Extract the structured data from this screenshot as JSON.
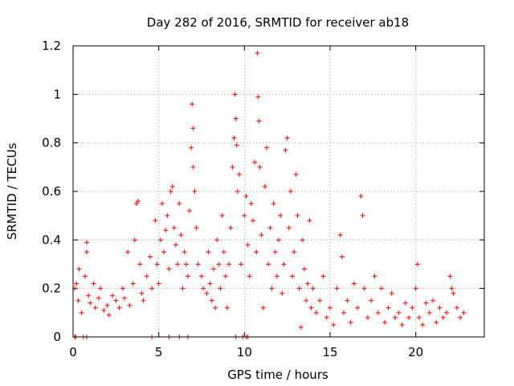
{
  "chart_data": {
    "type": "scatter",
    "title": "Day 282 of 2016, SRMTID for receiver ab18",
    "xlabel": "GPS time / hours",
    "ylabel": "SRMTID / TECUs",
    "xlim": [
      0,
      24
    ],
    "ylim": [
      0,
      1.2
    ],
    "xticks": [
      0,
      5,
      10,
      15,
      20
    ],
    "xtick_labels": [
      "0",
      "5",
      "10",
      "15",
      "20"
    ],
    "yticks": [
      0,
      0.2,
      0.4,
      0.6,
      0.8,
      1.0,
      1.2
    ],
    "ytick_labels": [
      "0",
      "0.2",
      "0.4",
      "0.6",
      "0.8",
      "1",
      "1.2"
    ],
    "grid": true,
    "marker": "+",
    "series": [
      {
        "name": "SRMTID",
        "color": "#ff0000",
        "points": [
          [
            0.1,
            0.2
          ],
          [
            0.2,
            0.22
          ],
          [
            0.3,
            0.15
          ],
          [
            0.35,
            0.28
          ],
          [
            0.5,
            0.1
          ],
          [
            0.7,
            0.25
          ],
          [
            0.8,
            0.39
          ],
          [
            0.8,
            0.35
          ],
          [
            0.9,
            0.17
          ],
          [
            1.0,
            0.14
          ],
          [
            1.2,
            0.22
          ],
          [
            1.3,
            0.12
          ],
          [
            1.5,
            0.16
          ],
          [
            1.6,
            0.2
          ],
          [
            1.8,
            0.11
          ],
          [
            2.0,
            0.13
          ],
          [
            2.1,
            0.09
          ],
          [
            2.3,
            0.17
          ],
          [
            2.5,
            0.15
          ],
          [
            2.7,
            0.12
          ],
          [
            2.9,
            0.2
          ],
          [
            3.0,
            0.16
          ],
          [
            3.2,
            0.35
          ],
          [
            3.3,
            0.13
          ],
          [
            3.5,
            0.22
          ],
          [
            3.6,
            0.4
          ],
          [
            3.7,
            0.55
          ],
          [
            3.8,
            0.56
          ],
          [
            3.9,
            0.3
          ],
          [
            4.0,
            0.18
          ],
          [
            4.1,
            0.15
          ],
          [
            4.3,
            0.25
          ],
          [
            4.5,
            0.33
          ],
          [
            4.6,
            0.2
          ],
          [
            4.8,
            0.48
          ],
          [
            4.9,
            0.3
          ],
          [
            5.0,
            0.22
          ],
          [
            5.1,
            0.4
          ],
          [
            5.2,
            0.55
          ],
          [
            5.3,
            0.35
          ],
          [
            5.4,
            0.44
          ],
          [
            5.5,
            0.5
          ],
          [
            5.6,
            0.28
          ],
          [
            5.7,
            0.6
          ],
          [
            5.8,
            0.62
          ],
          [
            5.9,
            0.45
          ],
          [
            6.0,
            0.38
          ],
          [
            6.1,
            0.3
          ],
          [
            6.2,
            0.55
          ],
          [
            6.3,
            0.42
          ],
          [
            6.4,
            0.2
          ],
          [
            6.5,
            0.35
          ],
          [
            6.6,
            0.3
          ],
          [
            6.7,
            0.25
          ],
          [
            6.8,
            0.52
          ],
          [
            6.9,
            0.78
          ],
          [
            6.95,
            0.96
          ],
          [
            7.0,
            0.86
          ],
          [
            7.0,
            0.7
          ],
          [
            7.1,
            0.6
          ],
          [
            7.2,
            0.45
          ],
          [
            7.3,
            0.3
          ],
          [
            7.5,
            0.25
          ],
          [
            7.6,
            0.2
          ],
          [
            7.8,
            0.18
          ],
          [
            7.9,
            0.35
          ],
          [
            8.0,
            0.22
          ],
          [
            8.1,
            0.15
          ],
          [
            8.2,
            0.28
          ],
          [
            8.3,
            0.12
          ],
          [
            8.4,
            0.4
          ],
          [
            8.5,
            0.3
          ],
          [
            8.6,
            0.2
          ],
          [
            8.7,
            0.5
          ],
          [
            8.8,
            0.35
          ],
          [
            8.9,
            0.25
          ],
          [
            9.0,
            0.12
          ],
          [
            9.1,
            0.3
          ],
          [
            9.2,
            0.45
          ],
          [
            9.3,
            0.7
          ],
          [
            9.4,
            0.82
          ],
          [
            9.45,
            1.0
          ],
          [
            9.5,
            0.9
          ],
          [
            9.55,
            0.79
          ],
          [
            9.6,
            0.6
          ],
          [
            9.7,
            0.67
          ],
          [
            9.8,
            0.3
          ],
          [
            10.0,
            0.5
          ],
          [
            10.1,
            0.58
          ],
          [
            10.2,
            0.38
          ],
          [
            10.3,
            0.25
          ],
          [
            10.4,
            0.55
          ],
          [
            10.5,
            0.48
          ],
          [
            10.6,
            0.72
          ],
          [
            10.7,
            0.35
          ],
          [
            10.75,
            1.17
          ],
          [
            10.8,
            0.99
          ],
          [
            10.85,
            0.89
          ],
          [
            10.9,
            0.7
          ],
          [
            11.0,
            0.42
          ],
          [
            11.1,
            0.12
          ],
          [
            11.2,
            0.62
          ],
          [
            11.3,
            0.78
          ],
          [
            11.4,
            0.3
          ],
          [
            11.5,
            0.45
          ],
          [
            11.6,
            0.2
          ],
          [
            11.7,
            0.55
          ],
          [
            11.8,
            0.35
          ],
          [
            11.9,
            0.25
          ],
          [
            12.0,
            0.4
          ],
          [
            12.1,
            0.5
          ],
          [
            12.2,
            0.18
          ],
          [
            12.3,
            0.3
          ],
          [
            12.4,
            0.77
          ],
          [
            12.5,
            0.82
          ],
          [
            12.6,
            0.45
          ],
          [
            12.7,
            0.6
          ],
          [
            12.8,
            0.25
          ],
          [
            12.9,
            0.35
          ],
          [
            13.0,
            0.67
          ],
          [
            13.1,
            0.5
          ],
          [
            13.2,
            0.2
          ],
          [
            13.3,
            0.04
          ],
          [
            13.4,
            0.4
          ],
          [
            13.5,
            0.28
          ],
          [
            13.6,
            0.15
          ],
          [
            13.7,
            0.22
          ],
          [
            13.8,
            0.48
          ],
          [
            13.9,
            0.12
          ],
          [
            14.0,
            0.2
          ],
          [
            14.2,
            0.1
          ],
          [
            14.4,
            0.15
          ],
          [
            14.6,
            0.25
          ],
          [
            14.8,
            0.08
          ],
          [
            15.0,
            0.12
          ],
          [
            15.2,
            0.05
          ],
          [
            15.4,
            0.2
          ],
          [
            15.6,
            0.42
          ],
          [
            15.7,
            0.33
          ],
          [
            15.8,
            0.1
          ],
          [
            16.0,
            0.15
          ],
          [
            16.2,
            0.06
          ],
          [
            16.4,
            0.22
          ],
          [
            16.6,
            0.12
          ],
          [
            16.8,
            0.58
          ],
          [
            16.9,
            0.5
          ],
          [
            17.0,
            0.2
          ],
          [
            17.2,
            0.08
          ],
          [
            17.4,
            0.15
          ],
          [
            17.6,
            0.25
          ],
          [
            17.8,
            0.1
          ],
          [
            18.0,
            0.2
          ],
          [
            18.2,
            0.06
          ],
          [
            18.4,
            0.12
          ],
          [
            18.6,
            0.18
          ],
          [
            18.8,
            0.08
          ],
          [
            19.0,
            0.1
          ],
          [
            19.2,
            0.05
          ],
          [
            19.4,
            0.14
          ],
          [
            19.6,
            0.08
          ],
          [
            19.8,
            0.12
          ],
          [
            20.0,
            0.2
          ],
          [
            20.1,
            0.3
          ],
          [
            20.2,
            0.08
          ],
          [
            20.4,
            0.05
          ],
          [
            20.6,
            0.14
          ],
          [
            20.8,
            0.1
          ],
          [
            21.0,
            0.15
          ],
          [
            21.2,
            0.06
          ],
          [
            21.4,
            0.12
          ],
          [
            21.6,
            0.08
          ],
          [
            21.8,
            0.1
          ],
          [
            22.0,
            0.25
          ],
          [
            22.1,
            0.2
          ],
          [
            22.2,
            0.18
          ],
          [
            22.4,
            0.12
          ],
          [
            22.6,
            0.08
          ],
          [
            22.8,
            0.1
          ],
          [
            0.1,
            0.0
          ],
          [
            0.15,
            0.0
          ],
          [
            0.6,
            0.0
          ],
          [
            0.8,
            0.0
          ],
          [
            4.6,
            0.0
          ],
          [
            5.6,
            0.0
          ],
          [
            6.2,
            0.0
          ],
          [
            6.7,
            0.0
          ],
          [
            9.5,
            0.0
          ],
          [
            9.9,
            0.0
          ],
          [
            10.1,
            0.0
          ],
          [
            10.2,
            0.0
          ]
        ]
      }
    ]
  }
}
